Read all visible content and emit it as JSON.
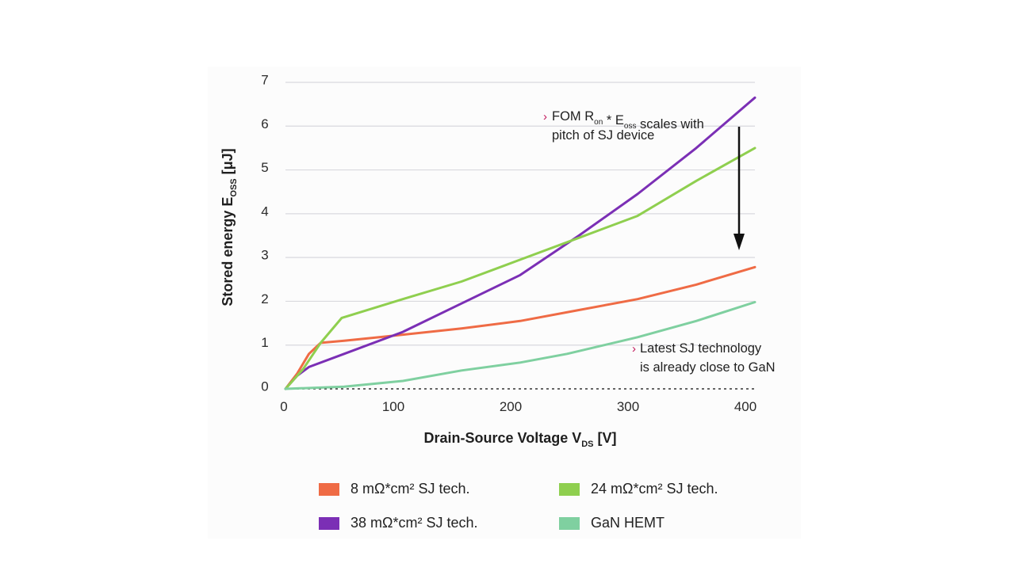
{
  "chart_data": {
    "type": "line",
    "xlabel": {
      "main": "Drain-Source Voltage V",
      "sub": "DS",
      "unit": " [V]"
    },
    "ylabel": {
      "main": "Stored energy E",
      "sub": "OSS",
      "unit": " [μJ]"
    },
    "xlim": [
      0,
      400
    ],
    "ylim": [
      0,
      7
    ],
    "x_ticks": [
      "0",
      "100",
      "200",
      "300",
      "400"
    ],
    "y_ticks": [
      "0",
      "1",
      "2",
      "3",
      "4",
      "5",
      "6",
      "7"
    ],
    "grid": true,
    "series": [
      {
        "name": "8 mΩ*cm² SJ tech.",
        "color": "#ef6b45",
        "points": [
          [
            0,
            0
          ],
          [
            10,
            0.35
          ],
          [
            20,
            0.8
          ],
          [
            30,
            1.05
          ],
          [
            50,
            1.1
          ],
          [
            80,
            1.18
          ],
          [
            150,
            1.38
          ],
          [
            200,
            1.55
          ],
          [
            250,
            1.8
          ],
          [
            300,
            2.05
          ],
          [
            350,
            2.38
          ],
          [
            400,
            2.78
          ]
        ]
      },
      {
        "name": "38 mΩ*cm² SJ tech.",
        "color": "#7b2fb5",
        "points": [
          [
            0,
            0
          ],
          [
            10,
            0.3
          ],
          [
            20,
            0.5
          ],
          [
            50,
            0.8
          ],
          [
            100,
            1.3
          ],
          [
            150,
            1.95
          ],
          [
            200,
            2.6
          ],
          [
            250,
            3.5
          ],
          [
            300,
            4.45
          ],
          [
            350,
            5.5
          ],
          [
            400,
            6.65
          ]
        ]
      },
      {
        "name": "24 mΩ*cm² SJ tech.",
        "color": "#8fcf4f",
        "points": [
          [
            0,
            0
          ],
          [
            15,
            0.45
          ],
          [
            30,
            1.05
          ],
          [
            48,
            1.62
          ],
          [
            100,
            2.05
          ],
          [
            150,
            2.45
          ],
          [
            200,
            2.95
          ],
          [
            250,
            3.45
          ],
          [
            300,
            3.95
          ],
          [
            350,
            4.75
          ],
          [
            400,
            5.5
          ]
        ]
      },
      {
        "name": "GaN HEMT",
        "color": "#7fd0a0",
        "points": [
          [
            0,
            0
          ],
          [
            50,
            0.05
          ],
          [
            100,
            0.18
          ],
          [
            150,
            0.42
          ],
          [
            200,
            0.6
          ],
          [
            240,
            0.8
          ],
          [
            300,
            1.18
          ],
          [
            350,
            1.55
          ],
          [
            400,
            1.98
          ]
        ]
      }
    ],
    "annotations": [
      {
        "lines": [
          {
            "parts": [
              {
                "t": "FOM R"
              },
              {
                "t": "on",
                "sub": true
              },
              {
                "t": " * E"
              },
              {
                "t": "oss",
                "sub": true
              },
              {
                "t": " scales with"
              }
            ]
          },
          {
            "parts": [
              {
                "t": "pitch of SJ device"
              }
            ]
          }
        ]
      },
      {
        "lines": [
          {
            "parts": [
              {
                "t": "Latest SJ technology"
              }
            ]
          },
          {
            "parts": [
              {
                "t": "is already close to GaN"
              }
            ]
          }
        ]
      }
    ],
    "legend": [
      {
        "label": "8 mΩ*cm² SJ tech.",
        "color": "#ef6b45"
      },
      {
        "label": "24 mΩ*cm² SJ tech.",
        "color": "#8fcf4f"
      },
      {
        "label": "38 mΩ*cm² SJ tech.",
        "color": "#7b2fb5"
      },
      {
        "label": "GaN HEMT",
        "color": "#7fd0a0"
      }
    ]
  }
}
